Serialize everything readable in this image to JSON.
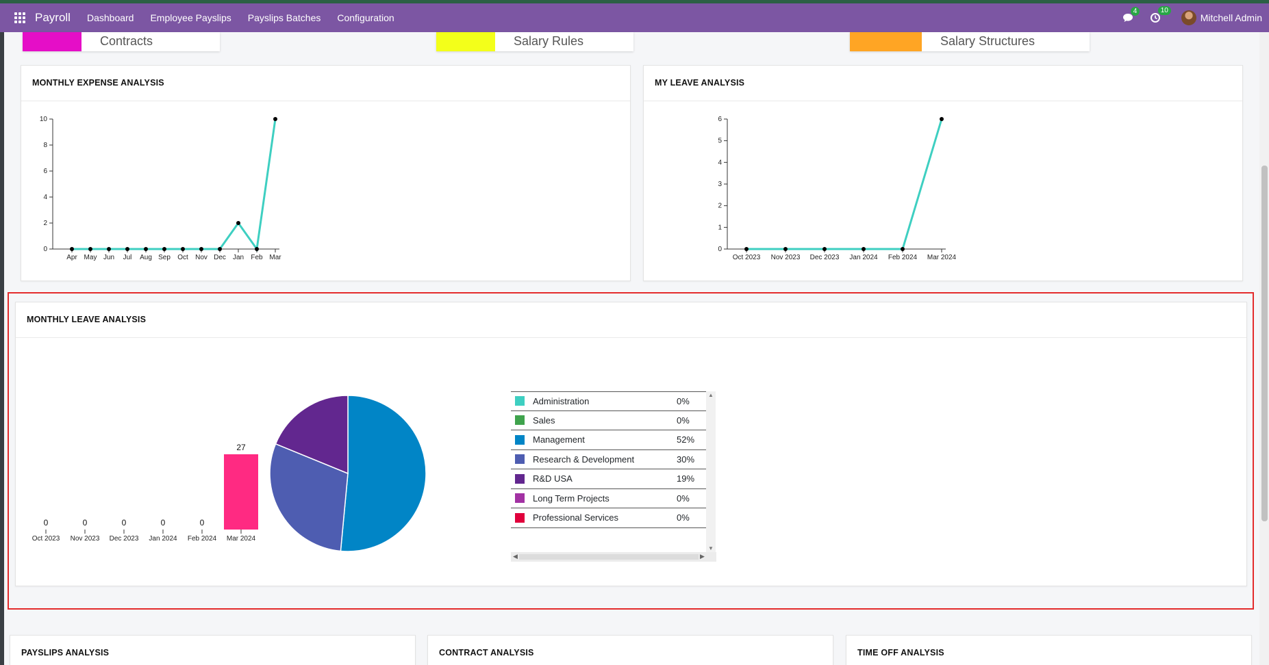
{
  "navbar": {
    "app_name": "Payroll",
    "menus": [
      "Dashboard",
      "Employee Payslips",
      "Payslips Batches",
      "Configuration"
    ],
    "messages_badge": "4",
    "activities_badge": "10",
    "user_name": "Mitchell Admin",
    "accent": "#7c56a3"
  },
  "tiles": [
    {
      "label": "Contracts",
      "color": "#e50ec7"
    },
    {
      "label": "Salary Rules",
      "color": "#f3ff1a"
    },
    {
      "label": "Salary Structures",
      "color": "#ffa524"
    }
  ],
  "monthly_expense": {
    "title": "MONTHLY EXPENSE ANALYSIS",
    "chart_data": {
      "type": "line",
      "categories": [
        "Apr",
        "May",
        "Jun",
        "Jul",
        "Aug",
        "Sep",
        "Oct",
        "Nov",
        "Dec",
        "Jan",
        "Feb",
        "Mar"
      ],
      "values": [
        0,
        0,
        0,
        0,
        0,
        0,
        0,
        0,
        0,
        2,
        0,
        10
      ],
      "yticks": [
        0,
        2,
        4,
        6,
        8,
        10
      ],
      "ylim": [
        0,
        10
      ],
      "color": "#3ecfc1"
    }
  },
  "my_leave": {
    "title": "MY LEAVE ANALYSIS",
    "chart_data": {
      "type": "line",
      "categories": [
        "Oct 2023",
        "Nov 2023",
        "Dec 2023",
        "Jan 2024",
        "Feb 2024",
        "Mar 2024"
      ],
      "values": [
        0,
        0,
        0,
        0,
        0,
        6
      ],
      "yticks": [
        0,
        1,
        2,
        3,
        4,
        5,
        6
      ],
      "ylim": [
        0,
        6
      ],
      "color": "#3ecfc1"
    }
  },
  "monthly_leave": {
    "title": "MONTHLY LEAVE ANALYSIS",
    "bar_chart": {
      "type": "bar",
      "categories": [
        "Oct 2023",
        "Nov 2023",
        "Dec 2023",
        "Jan 2024",
        "Feb 2024",
        "Mar 2024"
      ],
      "values": [
        0,
        0,
        0,
        0,
        0,
        27
      ],
      "color": "#ff2a82"
    },
    "pie_chart": {
      "type": "pie",
      "slices": [
        {
          "name": "Administration",
          "pct": "0%",
          "value": 0,
          "color": "#3ecfc1"
        },
        {
          "name": "Sales",
          "pct": "0%",
          "value": 0,
          "color": "#3fa34d"
        },
        {
          "name": "Management",
          "pct": "52%",
          "value": 52,
          "color": "#0185c6"
        },
        {
          "name": "Research & Development",
          "pct": "30%",
          "value": 30,
          "color": "#4e5db1"
        },
        {
          "name": "R&D USA",
          "pct": "19%",
          "value": 19,
          "color": "#62278f"
        },
        {
          "name": "Long Term Projects",
          "pct": "0%",
          "value": 0,
          "color": "#a232a3"
        },
        {
          "name": "Professional Services",
          "pct": "0%",
          "value": 0,
          "color": "#e0003c"
        }
      ]
    }
  },
  "bottom_cards": [
    "PAYSLIPS ANALYSIS",
    "CONTRACT ANALYSIS",
    "TIME OFF ANALYSIS"
  ]
}
